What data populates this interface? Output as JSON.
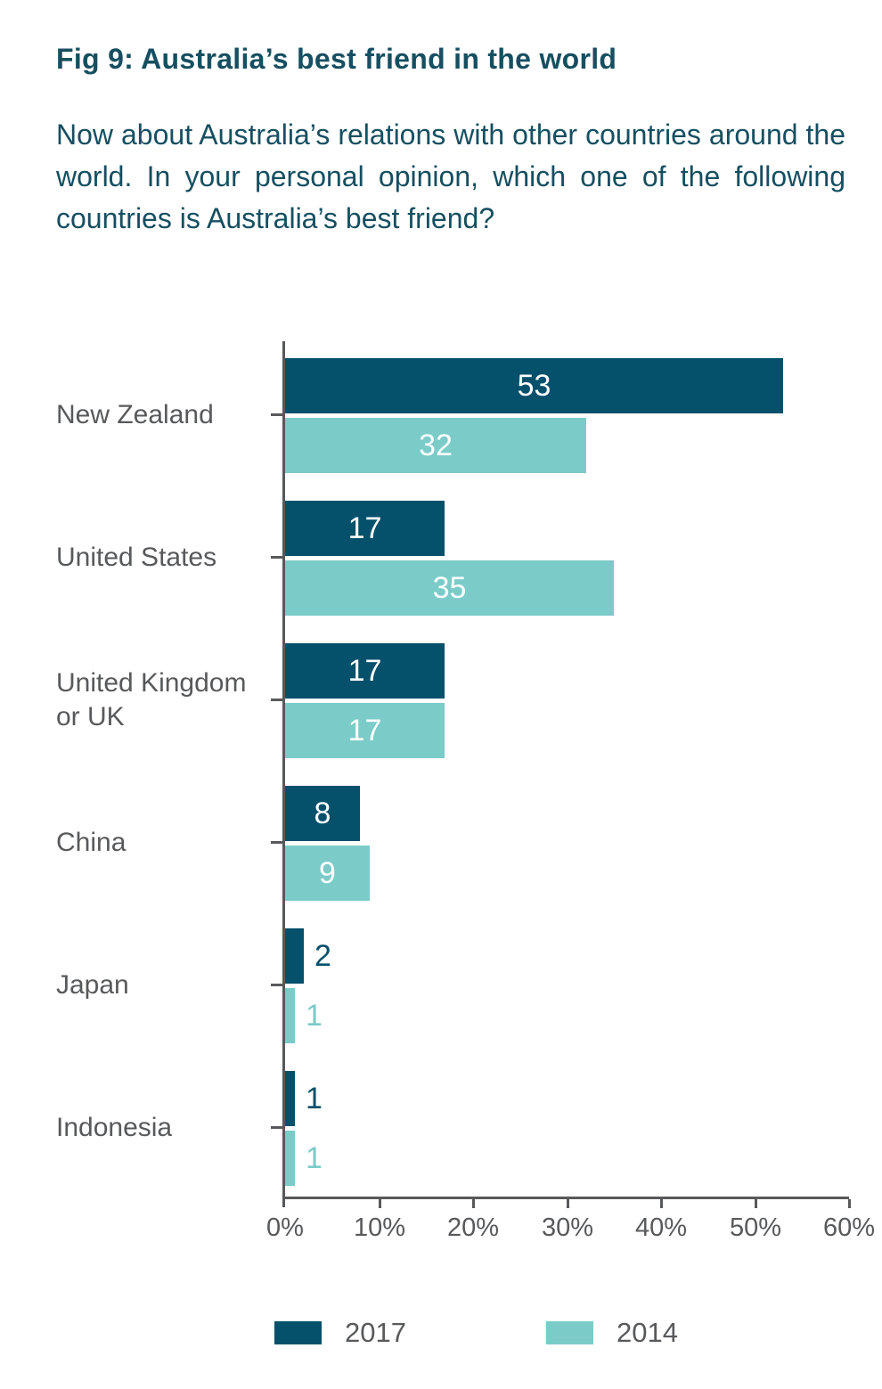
{
  "figure": {
    "title": "Fig 9: Australia’s best friend in the world",
    "question": "Now about Australia’s relations with other countries around the world. In your personal opinion, which one of the following countries is Australia’s best friend?"
  },
  "chart_data": {
    "type": "bar",
    "orientation": "horizontal",
    "title": "Fig 9: Australia’s best friend in the world",
    "categories": [
      "New Zealand",
      "United States",
      "United Kingdom or UK",
      "China",
      "Japan",
      "Indonesia"
    ],
    "series": [
      {
        "name": "2017",
        "color": "#05506b",
        "values": [
          53,
          17,
          17,
          8,
          2,
          1
        ]
      },
      {
        "name": "2014",
        "color": "#7bcbc9",
        "values": [
          32,
          35,
          17,
          9,
          1,
          1
        ]
      }
    ],
    "xlim": [
      0,
      60
    ],
    "x_tick_labels": [
      "0%",
      "10%",
      "20%",
      "30%",
      "40%",
      "50%",
      "60%"
    ],
    "value_labels_shown": true,
    "value_label_color_inside_bar": "#ffffff",
    "small_value_label_placement": "outside-right, colored as bar",
    "grid": "off",
    "legend_position": "bottom",
    "axis_color": "#58595b",
    "category_label_color": "#58595b",
    "text_color": "#164f61"
  }
}
